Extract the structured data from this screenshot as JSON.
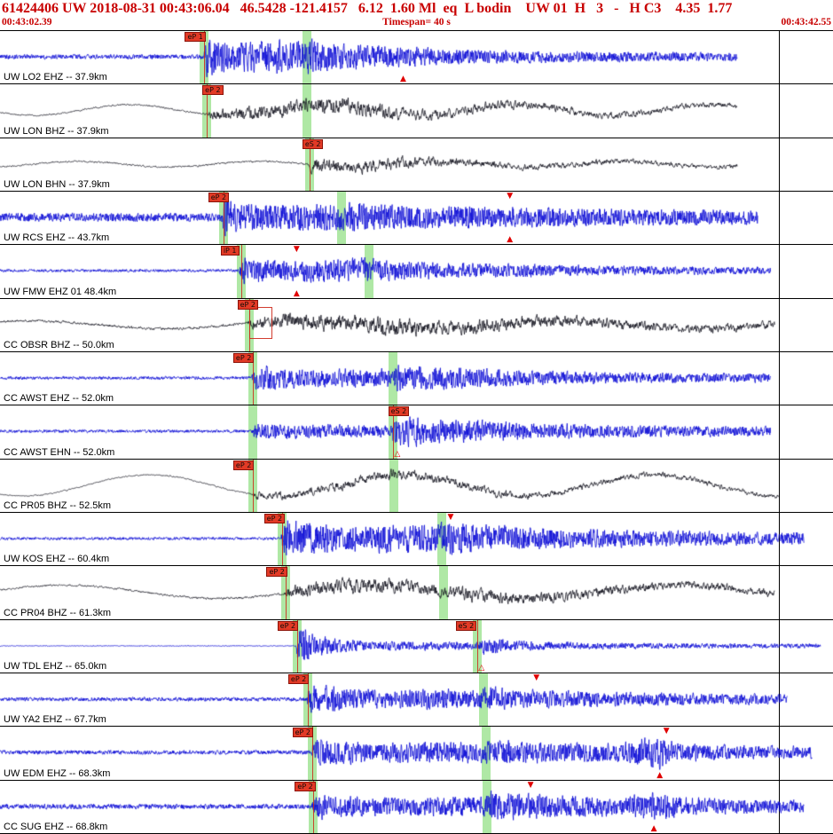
{
  "header": {
    "line1": "61424406 UW 2018-08-31 00:43:06.04   46.5428 -121.4157   6.12  1.60 Ml  eq  L bodin    UW 01  H   3   -   H C3    4.35  1.77",
    "start_time": "00:43:02.39",
    "timespan": "Timespan=  40 s",
    "end_time": "00:43:42.55"
  },
  "colors": {
    "trace_blue": "#0d0dd6",
    "trace_dark": "#14141f",
    "pick_band": "#abe7a0",
    "flag_bg": "#e23a26",
    "header_red": "#c80000"
  },
  "traces": [
    {
      "label": "UW LO2 EHZ -- 37.9km",
      "color": "blue",
      "seed": 101,
      "alpha": 0.2,
      "end": 0.885,
      "env": [
        [
          0,
          2
        ],
        [
          0.244,
          2
        ],
        [
          0.249,
          18
        ],
        [
          0.28,
          12
        ],
        [
          0.33,
          14
        ],
        [
          0.365,
          13
        ],
        [
          0.372,
          16
        ],
        [
          0.41,
          11
        ],
        [
          0.47,
          9
        ],
        [
          0.55,
          6.5
        ],
        [
          0.65,
          5
        ],
        [
          0.8,
          4
        ],
        [
          1,
          3
        ]
      ],
      "bands": [
        0.245,
        0.368
      ],
      "flags": [
        {
          "x": 0.222,
          "label": "eP 1",
          "line_x": 0.245
        }
      ],
      "markers": [
        {
          "x": 0.484,
          "glyph": "▲",
          "pos": "bottom"
        }
      ]
    },
    {
      "label": "UW LON BHZ -- 37.9km",
      "color": "dark",
      "seed": 202,
      "alpha": 0.62,
      "end": 0.885,
      "lf_amp": 6,
      "lf_cycles": 4.3,
      "lf_phase": 0.5,
      "env": [
        [
          0,
          1
        ],
        [
          0.249,
          1.2
        ],
        [
          0.253,
          7
        ],
        [
          0.3,
          9
        ],
        [
          0.37,
          10
        ],
        [
          0.42,
          11
        ],
        [
          0.5,
          8
        ],
        [
          0.6,
          6
        ],
        [
          0.7,
          4.5
        ],
        [
          0.85,
          3.5
        ],
        [
          1,
          3
        ]
      ],
      "bands": [
        0.248,
        0.369
      ],
      "flags": [
        {
          "x": 0.243,
          "label": "eP 2",
          "line_x": 0.248
        }
      ],
      "markers": []
    },
    {
      "label": "UW LON BHN -- 37.9km",
      "color": "dark",
      "seed": 303,
      "alpha": 0.6,
      "end": 0.885,
      "lf_amp": 3.2,
      "lf_cycles": 4.6,
      "lf_phase": 2.0,
      "env": [
        [
          0,
          1
        ],
        [
          0.37,
          1.3
        ],
        [
          0.375,
          11
        ],
        [
          0.41,
          7
        ],
        [
          0.47,
          8
        ],
        [
          0.55,
          5
        ],
        [
          0.65,
          4
        ],
        [
          0.8,
          3
        ],
        [
          1,
          2.5
        ]
      ],
      "bands": [
        0.372
      ],
      "flags": [
        {
          "x": 0.363,
          "label": "eS 2",
          "line_x": 0.372
        }
      ],
      "markers": []
    },
    {
      "label": "UW RCS EHZ -- 43.7km",
      "color": "blue",
      "seed": 404,
      "alpha": 0.13,
      "end": 0.91,
      "env": [
        [
          0,
          3.5
        ],
        [
          0.265,
          3.5
        ],
        [
          0.27,
          15
        ],
        [
          0.31,
          11
        ],
        [
          0.405,
          11
        ],
        [
          0.415,
          13
        ],
        [
          0.47,
          10
        ],
        [
          0.55,
          9
        ],
        [
          0.65,
          8
        ],
        [
          0.8,
          6.5
        ],
        [
          1,
          5.5
        ]
      ],
      "bands": [
        0.268,
        0.41
      ],
      "flags": [
        {
          "x": 0.25,
          "label": "eP 2",
          "line_x": 0.268
        }
      ],
      "markers": [
        {
          "x": 0.612,
          "glyph": "▼",
          "pos": "top"
        },
        {
          "x": 0.612,
          "glyph": "▲",
          "pos": "bottom"
        }
      ]
    },
    {
      "label": "UW FMW EHZ 01 48.4km",
      "color": "blue",
      "seed": 505,
      "alpha": 0.25,
      "end": 0.925,
      "env": [
        [
          0,
          1.3
        ],
        [
          0.287,
          1.3
        ],
        [
          0.292,
          13
        ],
        [
          0.33,
          9
        ],
        [
          0.44,
          11
        ],
        [
          0.5,
          8
        ],
        [
          0.6,
          6
        ],
        [
          0.72,
          4.5
        ],
        [
          0.85,
          3.5
        ],
        [
          1,
          3
        ]
      ],
      "bands": [
        0.29,
        0.443
      ],
      "flags": [
        {
          "x": 0.265,
          "label": "iP 1",
          "line_x": 0.29
        }
      ],
      "markers": [
        {
          "x": 0.356,
          "glyph": "▼",
          "pos": "top"
        },
        {
          "x": 0.356,
          "glyph": "▲",
          "pos": "bottom"
        }
      ]
    },
    {
      "label": "CC OBSR BHZ -- 50.0km",
      "color": "dark",
      "seed": 606,
      "alpha": 0.58,
      "end": 0.93,
      "lf_amp": 4.5,
      "lf_cycles": 3.1,
      "lf_phase": 4.0,
      "env": [
        [
          0,
          1.5
        ],
        [
          0.297,
          1.8
        ],
        [
          0.302,
          8
        ],
        [
          0.36,
          10
        ],
        [
          0.45,
          11
        ],
        [
          0.55,
          9
        ],
        [
          0.68,
          7
        ],
        [
          0.8,
          5.5
        ],
        [
          1,
          4.5
        ]
      ],
      "bands": [
        0.299
      ],
      "flags": [
        {
          "x": 0.285,
          "label": "eP 2",
          "line_x": 0.299,
          "box": true
        }
      ],
      "markers": []
    },
    {
      "label": "CC AWST EHZ -- 52.0km",
      "color": "blue",
      "seed": 707,
      "alpha": 0.25,
      "end": 0.925,
      "env": [
        [
          0,
          1.4
        ],
        [
          0.302,
          1.4
        ],
        [
          0.307,
          11
        ],
        [
          0.37,
          8
        ],
        [
          0.468,
          8
        ],
        [
          0.476,
          12
        ],
        [
          0.55,
          9
        ],
        [
          0.66,
          6
        ],
        [
          0.8,
          4.5
        ],
        [
          1,
          3.5
        ]
      ],
      "bands": [
        0.304,
        0.472
      ],
      "flags": [
        {
          "x": 0.28,
          "label": "eP 2",
          "line_x": 0.304
        }
      ],
      "markers": []
    },
    {
      "label": "CC AWST EHN -- 52.0km",
      "color": "blue",
      "seed": 808,
      "alpha": 0.25,
      "end": 0.925,
      "env": [
        [
          0,
          1.4
        ],
        [
          0.302,
          1.4
        ],
        [
          0.307,
          7
        ],
        [
          0.4,
          5.5
        ],
        [
          0.468,
          5.5
        ],
        [
          0.476,
          14
        ],
        [
          0.55,
          10
        ],
        [
          0.66,
          7
        ],
        [
          0.8,
          5
        ],
        [
          1,
          4
        ]
      ],
      "bands": [
        0.304,
        0.472
      ],
      "flags": [
        {
          "x": 0.466,
          "label": "eS 2",
          "line_x": 0.472
        }
      ],
      "markers": [
        {
          "x": 0.477,
          "glyph": "△",
          "pos": "bottom"
        }
      ]
    },
    {
      "label": "CC PR05 BHZ -- 52.5km",
      "color": "dark",
      "seed": 909,
      "alpha": 0.65,
      "end": 0.935,
      "lf_amp": 12,
      "lf_cycles": 3.3,
      "lf_phase": 1.0,
      "env": [
        [
          0,
          0.8
        ],
        [
          0.302,
          1
        ],
        [
          0.307,
          5
        ],
        [
          0.4,
          6.5
        ],
        [
          0.47,
          7.5
        ],
        [
          0.55,
          6
        ],
        [
          0.68,
          4.5
        ],
        [
          0.85,
          3.5
        ],
        [
          1,
          3
        ]
      ],
      "bands": [
        0.304,
        0.473
      ],
      "flags": [
        {
          "x": 0.28,
          "label": "eP 2",
          "line_x": 0.304
        }
      ],
      "markers": []
    },
    {
      "label": "UW KOS EHZ -- 60.4km",
      "color": "blue",
      "seed": 1010,
      "alpha": 0.18,
      "end": 0.965,
      "env": [
        [
          0,
          1.2
        ],
        [
          0.337,
          1.2
        ],
        [
          0.342,
          16
        ],
        [
          0.4,
          12
        ],
        [
          0.525,
          12
        ],
        [
          0.533,
          14
        ],
        [
          0.6,
          11
        ],
        [
          0.7,
          8
        ],
        [
          0.85,
          6
        ],
        [
          1,
          5
        ]
      ],
      "bands": [
        0.339,
        0.53
      ],
      "flags": [
        {
          "x": 0.317,
          "label": "eP 2",
          "line_x": 0.339
        }
      ],
      "markers": [
        {
          "x": 0.541,
          "glyph": "▼",
          "pos": "top"
        }
      ]
    },
    {
      "label": "CC PR04 BHZ -- 61.3km",
      "color": "dark",
      "seed": 1111,
      "alpha": 0.6,
      "end": 0.93,
      "lf_amp": 7.5,
      "lf_cycles": 2.7,
      "lf_phase": 3.4,
      "env": [
        [
          0,
          1.2
        ],
        [
          0.341,
          1.5
        ],
        [
          0.346,
          8
        ],
        [
          0.42,
          10
        ],
        [
          0.53,
          9
        ],
        [
          0.62,
          7.5
        ],
        [
          0.75,
          6
        ],
        [
          0.9,
          5
        ],
        [
          1,
          4.5
        ]
      ],
      "bands": [
        0.343,
        0.533
      ],
      "flags": [
        {
          "x": 0.32,
          "label": "eP 2",
          "line_x": 0.343
        }
      ],
      "markers": []
    },
    {
      "label": "UW TDL EHZ -- 65.0km",
      "color": "blue",
      "seed": 1212,
      "alpha": 0.3,
      "end": 0.985,
      "env": [
        [
          0,
          0.4
        ],
        [
          0.355,
          0.4
        ],
        [
          0.359,
          24
        ],
        [
          0.372,
          12
        ],
        [
          0.4,
          7
        ],
        [
          0.45,
          4.5
        ],
        [
          0.57,
          3.5
        ],
        [
          0.576,
          8
        ],
        [
          0.63,
          4.5
        ],
        [
          0.72,
          3
        ],
        [
          0.85,
          2.5
        ],
        [
          1,
          2
        ]
      ],
      "bands": [
        0.357,
        0.573
      ],
      "flags": [
        {
          "x": 0.333,
          "label": "eP 2",
          "line_x": 0.357
        },
        {
          "x": 0.547,
          "label": "eS 2",
          "line_x": 0.573
        }
      ],
      "markers": [
        {
          "x": 0.578,
          "glyph": "△",
          "pos": "bottom"
        }
      ]
    },
    {
      "label": "UW YA2 EHZ -- 67.7km",
      "color": "blue",
      "seed": 1313,
      "alpha": 0.25,
      "end": 0.945,
      "env": [
        [
          0,
          1.8
        ],
        [
          0.368,
          1.8
        ],
        [
          0.373,
          13
        ],
        [
          0.43,
          9
        ],
        [
          0.578,
          9
        ],
        [
          0.585,
          11
        ],
        [
          0.65,
          8
        ],
        [
          0.76,
          6
        ],
        [
          0.88,
          5
        ],
        [
          1,
          4
        ]
      ],
      "bands": [
        0.37,
        0.58
      ],
      "flags": [
        {
          "x": 0.346,
          "label": "eP 2",
          "line_x": 0.37
        }
      ],
      "markers": [
        {
          "x": 0.644,
          "glyph": "▼",
          "pos": "top"
        }
      ]
    },
    {
      "label": "UW EDM EHZ -- 68.3km",
      "color": "blue",
      "seed": 1414,
      "alpha": 0.22,
      "end": 0.975,
      "env": [
        [
          0,
          1.8
        ],
        [
          0.373,
          1.8
        ],
        [
          0.378,
          12
        ],
        [
          0.45,
          9
        ],
        [
          0.582,
          9
        ],
        [
          0.588,
          11
        ],
        [
          0.65,
          9
        ],
        [
          0.74,
          8
        ],
        [
          0.795,
          15
        ],
        [
          0.81,
          8
        ],
        [
          0.9,
          6
        ],
        [
          1,
          5
        ]
      ],
      "bands": [
        0.375,
        0.584
      ],
      "flags": [
        {
          "x": 0.351,
          "label": "eP 2",
          "line_x": 0.375
        }
      ],
      "markers": [
        {
          "x": 0.8,
          "glyph": "▼",
          "pos": "top"
        },
        {
          "x": 0.792,
          "glyph": "▲",
          "pos": "bottom"
        }
      ]
    },
    {
      "label": "CC SUG EHZ -- 68.8km",
      "color": "blue",
      "seed": 1515,
      "alpha": 0.22,
      "end": 0.965,
      "env": [
        [
          0,
          2.2
        ],
        [
          0.374,
          2.2
        ],
        [
          0.379,
          11
        ],
        [
          0.45,
          8
        ],
        [
          0.583,
          9
        ],
        [
          0.589,
          13
        ],
        [
          0.65,
          10
        ],
        [
          0.74,
          8
        ],
        [
          0.783,
          13
        ],
        [
          0.82,
          8
        ],
        [
          0.9,
          6
        ],
        [
          1,
          5
        ]
      ],
      "bands": [
        0.376,
        0.585
      ],
      "flags": [
        {
          "x": 0.354,
          "label": "eP 2",
          "line_x": 0.376
        }
      ],
      "markers": [
        {
          "x": 0.637,
          "glyph": "▼",
          "pos": "top"
        },
        {
          "x": 0.785,
          "glyph": "▲",
          "pos": "bottom"
        }
      ]
    }
  ]
}
